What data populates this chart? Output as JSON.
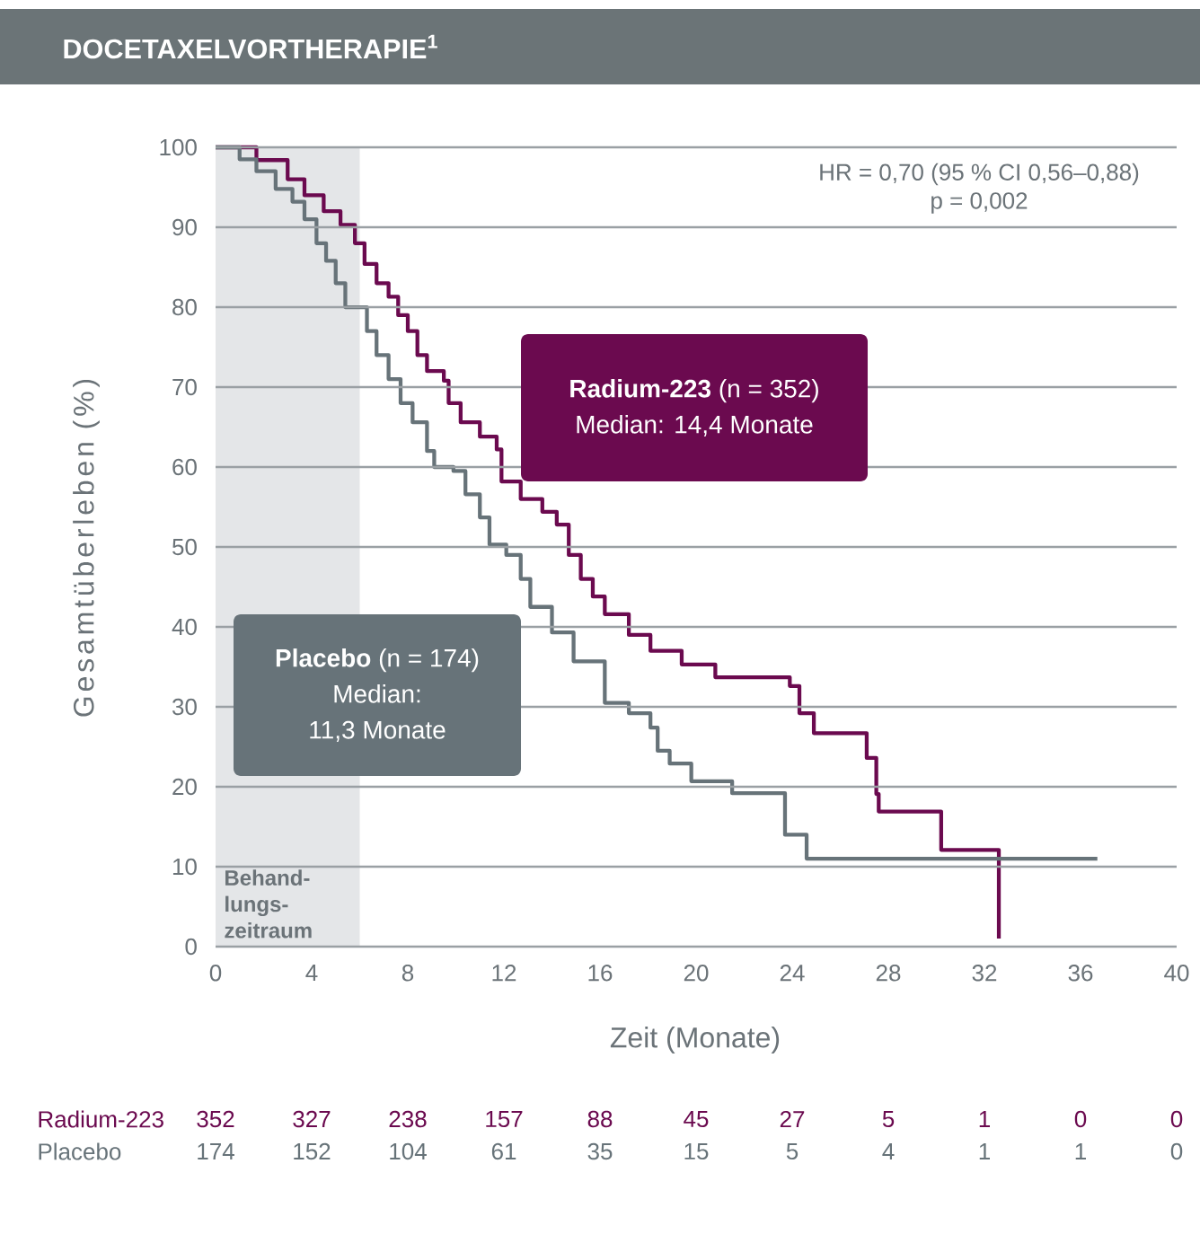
{
  "chart_data": {
    "type": "step",
    "title": "DOCETAXELVORTHERAPIE$^{1}$",
    "xlabel": "Zeit (Monate)",
    "ylabel": "Gesamtüberleben (%)",
    "xlim": [
      0,
      40
    ],
    "xticks": [
      0,
      4,
      8,
      12,
      16,
      20,
      24,
      28,
      32,
      36,
      40
    ],
    "ylim": [
      0,
      100
    ],
    "yticks": [
      0,
      10,
      20,
      30,
      40,
      50,
      60,
      70,
      80,
      90,
      100
    ],
    "grid": "y",
    "series": [
      {
        "name": "Radium-223",
        "color": "#6b0a4f",
        "x": [
          0,
          1.7,
          3.0,
          3.7,
          4.5,
          5.2,
          5.8,
          6.2,
          6.7,
          7.2,
          7.6,
          8.0,
          8.4,
          8.8,
          9.5,
          9.7,
          10.2,
          11.0,
          11.7,
          11.9,
          12.7,
          13.6,
          14.2,
          14.7,
          15.2,
          15.7,
          16.2,
          17.2,
          18.1,
          19.4,
          20.8,
          23.9,
          24.3,
          24.9,
          27.1,
          27.5,
          27.6,
          30.2,
          32.6
        ],
        "values": [
          100,
          98.4,
          96,
          94,
          92,
          90.3,
          88,
          85.4,
          83,
          81.3,
          79,
          77,
          74,
          72,
          70.8,
          68,
          65.6,
          63.8,
          62.2,
          58.2,
          56,
          54.4,
          52.8,
          49,
          46,
          43.8,
          41.6,
          39,
          37,
          35.3,
          33.7,
          32.6,
          29.2,
          26.7,
          23.6,
          19.1,
          16.9,
          12.1,
          1
        ]
      },
      {
        "name": "Placebo",
        "color": "#677379",
        "x": [
          0,
          1.0,
          1.7,
          2.5,
          3.2,
          3.7,
          4.2,
          4.6,
          5.0,
          5.4,
          6.3,
          6.7,
          7.2,
          7.7,
          8.2,
          8.8,
          9.1,
          9.9,
          10.4,
          11.0,
          11.4,
          12.1,
          12.7,
          13.1,
          14.0,
          14.9,
          16.2,
          17.2,
          18.1,
          18.4,
          18.9,
          19.8,
          21.5,
          23.7,
          24.6,
          36.7
        ],
        "values": [
          100,
          98.5,
          97,
          94.8,
          93.2,
          91,
          88,
          85.8,
          83,
          80,
          77,
          74,
          71,
          68,
          65.6,
          62,
          60,
          59.5,
          56.6,
          53.7,
          50.3,
          49,
          46,
          42.5,
          39.3,
          35.7,
          30.5,
          29.2,
          27.4,
          24.5,
          22.9,
          20.7,
          19.2,
          14,
          11,
          11
        ]
      }
    ],
    "bands": [
      {
        "axis": "x",
        "from": 0,
        "to": 6,
        "label": "Behand- lungs- zeitraum",
        "color": "#e4e6e8"
      }
    ],
    "annotations": [
      "HR = 0,70 (95 % CI 0,56–0,88)",
      "p = 0,002",
      "**Radium-223** (n = 352)",
      "Median: 14,4 Monate",
      "**Placebo** (n = 174)",
      "Median:",
      "11,3 Monate",
      "352",
      "327",
      "238",
      "157",
      "88",
      "45",
      "27",
      "5",
      "1",
      "0",
      "0",
      "174",
      "152",
      "104",
      "61",
      "35",
      "15",
      "5",
      "4",
      "1",
      "1",
      "0"
    ]
  }
}
